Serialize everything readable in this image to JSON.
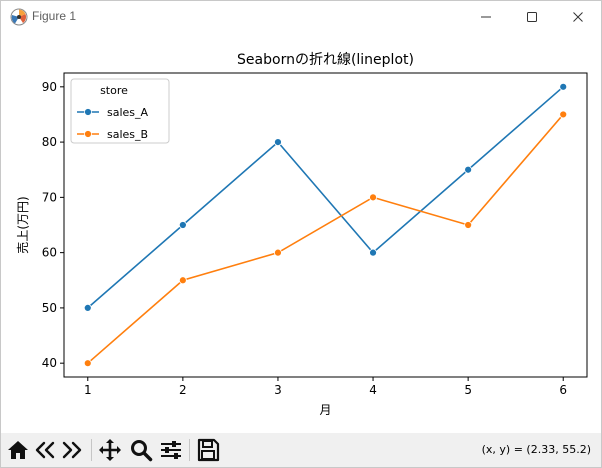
{
  "window": {
    "title": "Figure 1"
  },
  "toolbar": {
    "buttons": [
      "home-icon",
      "back-arrow-icon",
      "forward-arrow-icon",
      "pan-move-icon",
      "zoom-magnifier-icon",
      "configure-subplots-icon",
      "save-disk-icon"
    ],
    "coords": "(x, y) = (2.33, 55.2)"
  },
  "chart_data": {
    "type": "line",
    "title": "Seabornの折れ線(lineplot)",
    "xlabel": "月",
    "ylabel": "売上(万円)",
    "x": [
      1,
      2,
      3,
      4,
      5,
      6
    ],
    "x_ticks": [
      "1",
      "2",
      "3",
      "4",
      "5",
      "6"
    ],
    "y_ticks": [
      "40",
      "50",
      "60",
      "70",
      "80",
      "90"
    ],
    "ylim": [
      37.5,
      92.5
    ],
    "xlim": [
      0.75,
      6.25
    ],
    "legend": {
      "title": "store",
      "placement": "top-left"
    },
    "grid": false,
    "series": [
      {
        "name": "sales_A",
        "color": "#1f77b4",
        "values": [
          50,
          65,
          80,
          60,
          75,
          90
        ]
      },
      {
        "name": "sales_B",
        "color": "#ff7f0e",
        "values": [
          40,
          55,
          60,
          70,
          65,
          85
        ]
      }
    ]
  }
}
